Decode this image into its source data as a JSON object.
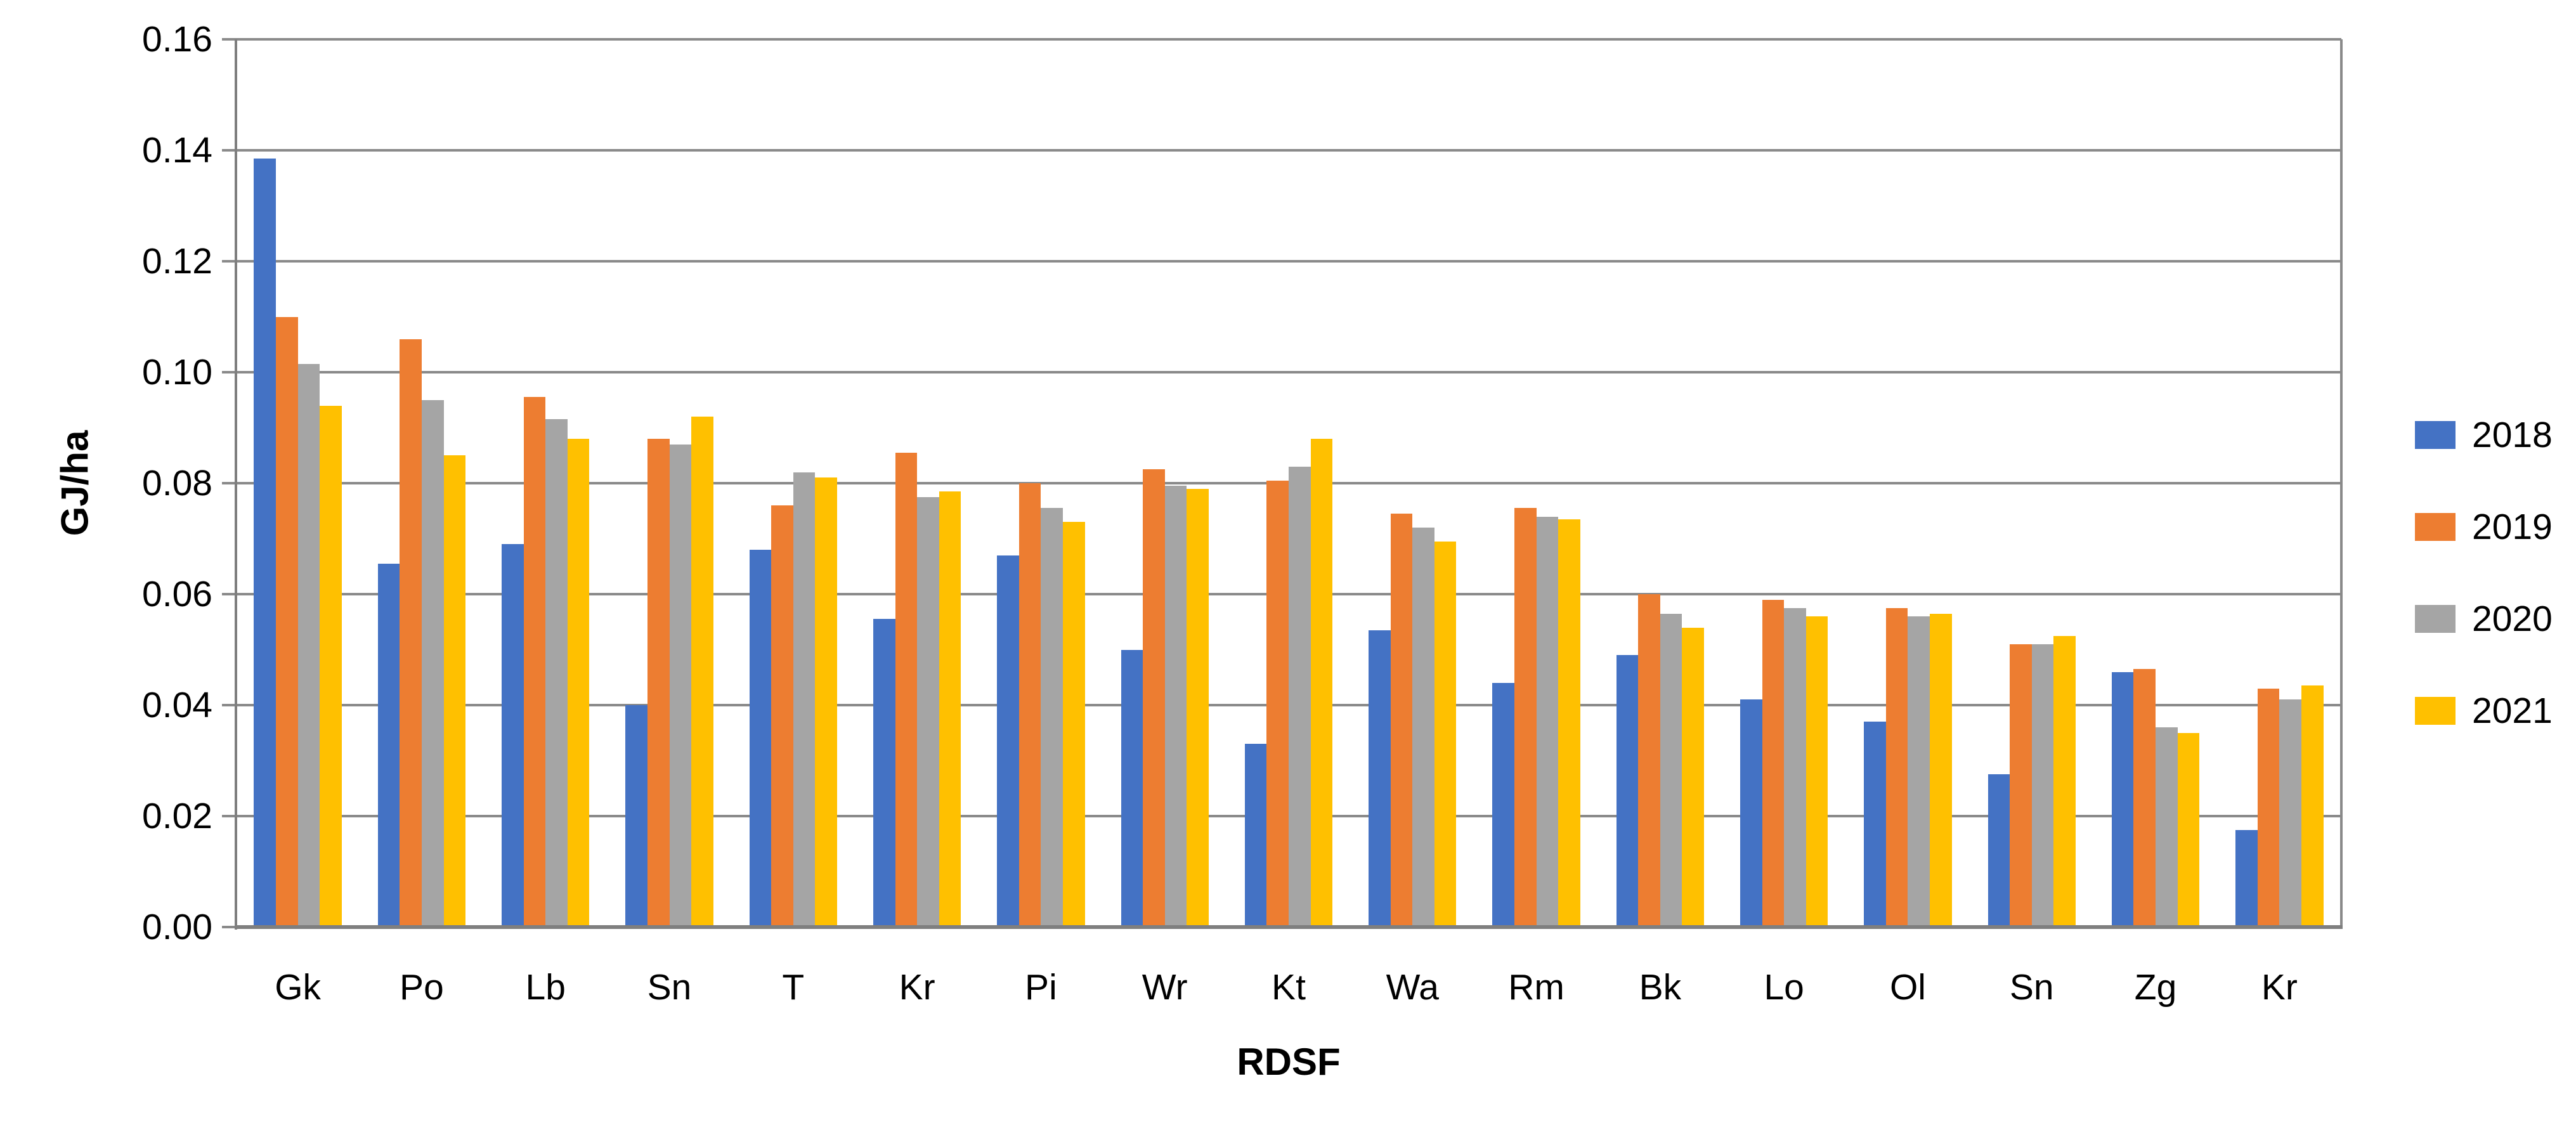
{
  "chart_data": {
    "type": "bar",
    "title": "",
    "xlabel": "RDSF",
    "ylabel": "GJ/ha",
    "categories": [
      "Gk",
      "Po",
      "Lb",
      "Sn",
      "T",
      "Kr",
      "Pi",
      "Wr",
      "Kt",
      "Wa",
      "Rm",
      "Bk",
      "Lo",
      "Ol",
      "Sn",
      "Zg",
      "Kr"
    ],
    "series": [
      {
        "name": "2018",
        "color": "#4472C4",
        "values": [
          0.1385,
          0.0655,
          0.069,
          0.04,
          0.068,
          0.0555,
          0.067,
          0.05,
          0.033,
          0.0535,
          0.044,
          0.049,
          0.041,
          0.037,
          0.0275,
          0.046,
          0.0175
        ]
      },
      {
        "name": "2019",
        "color": "#ED7D31",
        "values": [
          0.11,
          0.106,
          0.0955,
          0.088,
          0.076,
          0.0855,
          0.08,
          0.0825,
          0.0805,
          0.0745,
          0.0755,
          0.06,
          0.059,
          0.0575,
          0.051,
          0.0465,
          0.043
        ]
      },
      {
        "name": "2020",
        "color": "#A5A5A5",
        "values": [
          0.1015,
          0.095,
          0.0915,
          0.087,
          0.082,
          0.0775,
          0.0755,
          0.0795,
          0.083,
          0.072,
          0.074,
          0.0565,
          0.0575,
          0.056,
          0.051,
          0.036,
          0.041
        ]
      },
      {
        "name": "2021",
        "color": "#FFC000",
        "values": [
          0.094,
          0.085,
          0.088,
          0.092,
          0.081,
          0.0785,
          0.073,
          0.079,
          0.088,
          0.0695,
          0.0735,
          0.054,
          0.056,
          0.0565,
          0.0525,
          0.035,
          0.0435
        ]
      }
    ],
    "ylim": [
      0,
      0.16
    ],
    "ytick_step": 0.02,
    "ytick_labels": [
      "0.00",
      "0.02",
      "0.04",
      "0.06",
      "0.08",
      "0.10",
      "0.12",
      "0.14",
      "0.16"
    ],
    "grid": true,
    "legend_position": "right",
    "legend_entries": [
      "2018",
      "2019",
      "2020",
      "2021"
    ],
    "colors": {
      "s2018": "#4472C4",
      "s2019": "#ED7D31",
      "s2020": "#A5A5A5",
      "s2021": "#FFC000",
      "gridline": "#8a8a8a",
      "axis_line": "#7f7f7f",
      "text": "#000000",
      "background": "#ffffff"
    }
  }
}
